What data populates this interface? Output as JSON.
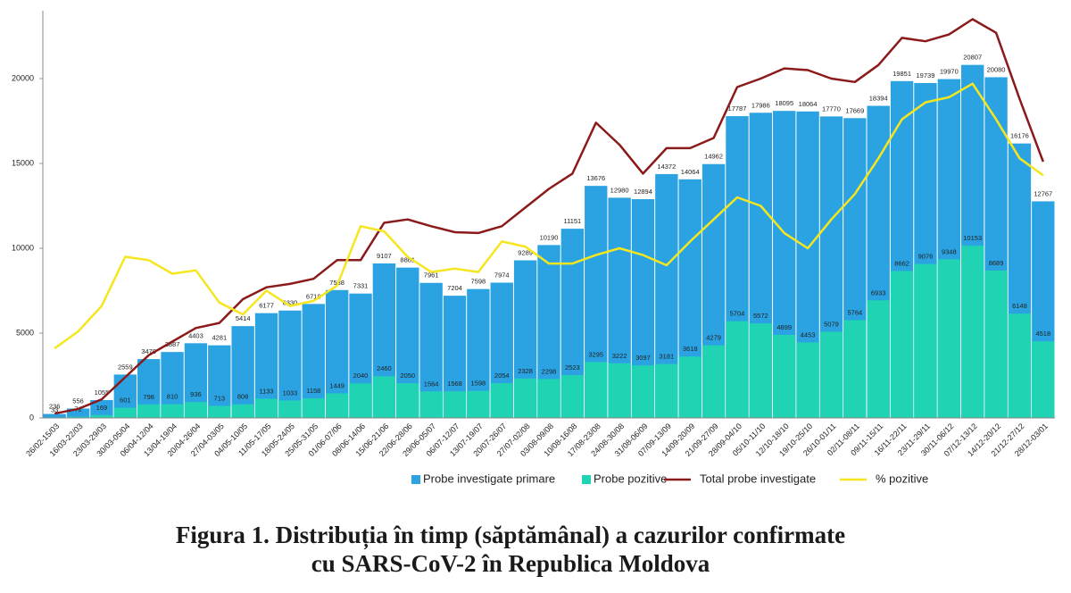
{
  "chart_data": {
    "type": "bar",
    "title": [
      "Figura 1. Distribuția în timp (săptămânal) a cazurilor confirmate",
      "cu SARS-CoV-2 în Republica Moldova"
    ],
    "categories": [
      "26/02-15/03",
      "16/03-22/03",
      "23/03-29/03",
      "30/03-05/04",
      "06/04-12/04",
      "13/04-19/04",
      "20/04-26/04",
      "27/04-03/05",
      "04/05-10/05",
      "11/05-17/05",
      "18/05-24/05",
      "25/05-31/05",
      "01/06-07/06",
      "08/06-14/06",
      "15/06-21/06",
      "22/06-28/06",
      "29/06-05/07",
      "06/07-12/07",
      "13/07-19/07",
      "20/07-26/07",
      "27/07-02/08",
      "03/08-09/08",
      "10/08-16/08",
      "17/08-23/08",
      "24/08-30/08",
      "31/08-06/09",
      "07/09-13/09",
      "14/09-20/09",
      "21/09-27/09",
      "28/09-04/10",
      "05/10-11/10",
      "12/10-18/10",
      "19/10-25/10",
      "26/10-01/11",
      "02/11-08/11",
      "09/11-15/11",
      "16/11-22/11",
      "23/11-29/11",
      "30/11-06/12",
      "07/12-13/12",
      "14/12-20/12",
      "21/12-27/12",
      "28/12-03/01"
    ],
    "series": [
      {
        "name": "Probe investigate primare",
        "type": "bar",
        "color": "#2ba3e3",
        "show_values": true,
        "values": [
          236,
          556,
          1055,
          2559,
          3470,
          3887,
          4403,
          4281,
          5414,
          6177,
          6330,
          6718,
          7538,
          7331,
          9107,
          8861,
          7961,
          7204,
          7598,
          7974,
          9289,
          10190,
          11151,
          13676,
          12980,
          12894,
          14372,
          14064,
          14962,
          17787,
          17986,
          18095,
          18064,
          17770,
          17669,
          18394,
          19851,
          19739,
          19970,
          20807,
          20080,
          16176,
          12767
        ]
      },
      {
        "name": "Probe pozitive",
        "type": "bar",
        "color": "#1fd3b3",
        "show_values": true,
        "values": [
          33,
          71,
          169,
          601,
          798,
          810,
          936,
          713,
          806,
          1133,
          1033,
          1158,
          1449,
          2040,
          2460,
          2050,
          1564,
          1568,
          1598,
          2054,
          2328,
          2298,
          2523,
          3295,
          3222,
          3097,
          3181,
          3618,
          4279,
          5704,
          5572,
          4899,
          4453,
          5079,
          5764,
          6933,
          8662,
          9076,
          9348,
          10153,
          8689,
          6148,
          4518
        ]
      },
      {
        "name": "Total  probe investigate",
        "type": "line",
        "color": "#8b1a1a",
        "values": [
          260,
          530,
          1100,
          2400,
          3700,
          4500,
          5300,
          5600,
          7000,
          7700,
          7900,
          8200,
          9300,
          9300,
          11500,
          11700,
          11300,
          10950,
          10900,
          11300,
          12400,
          13500,
          14400,
          17400,
          16100,
          14400,
          15900,
          15900,
          16500,
          19500,
          20000,
          20600,
          20500,
          20000,
          19800,
          20800,
          22400,
          22200,
          22600,
          23500,
          22700,
          18800,
          15100
        ]
      },
      {
        "name": "% pozitive",
        "type": "line",
        "color": "#f5e61e",
        "values": [
          4100,
          5100,
          6600,
          9500,
          9300,
          8500,
          8700,
          6800,
          6100,
          7500,
          6600,
          6900,
          7800,
          11300,
          11000,
          9500,
          8600,
          8800,
          8600,
          10400,
          10100,
          9100,
          9100,
          9600,
          10000,
          9600,
          9000,
          10400,
          11700,
          13000,
          12500,
          10900,
          10000,
          11700,
          13200,
          15300,
          17600,
          18600,
          18900,
          19700,
          17600,
          15300,
          14300
        ]
      }
    ],
    "ylim": [
      0,
      24000
    ],
    "yticks": [
      0,
      5000,
      10000,
      15000,
      20000
    ],
    "grid": false,
    "legend": "bottom"
  }
}
